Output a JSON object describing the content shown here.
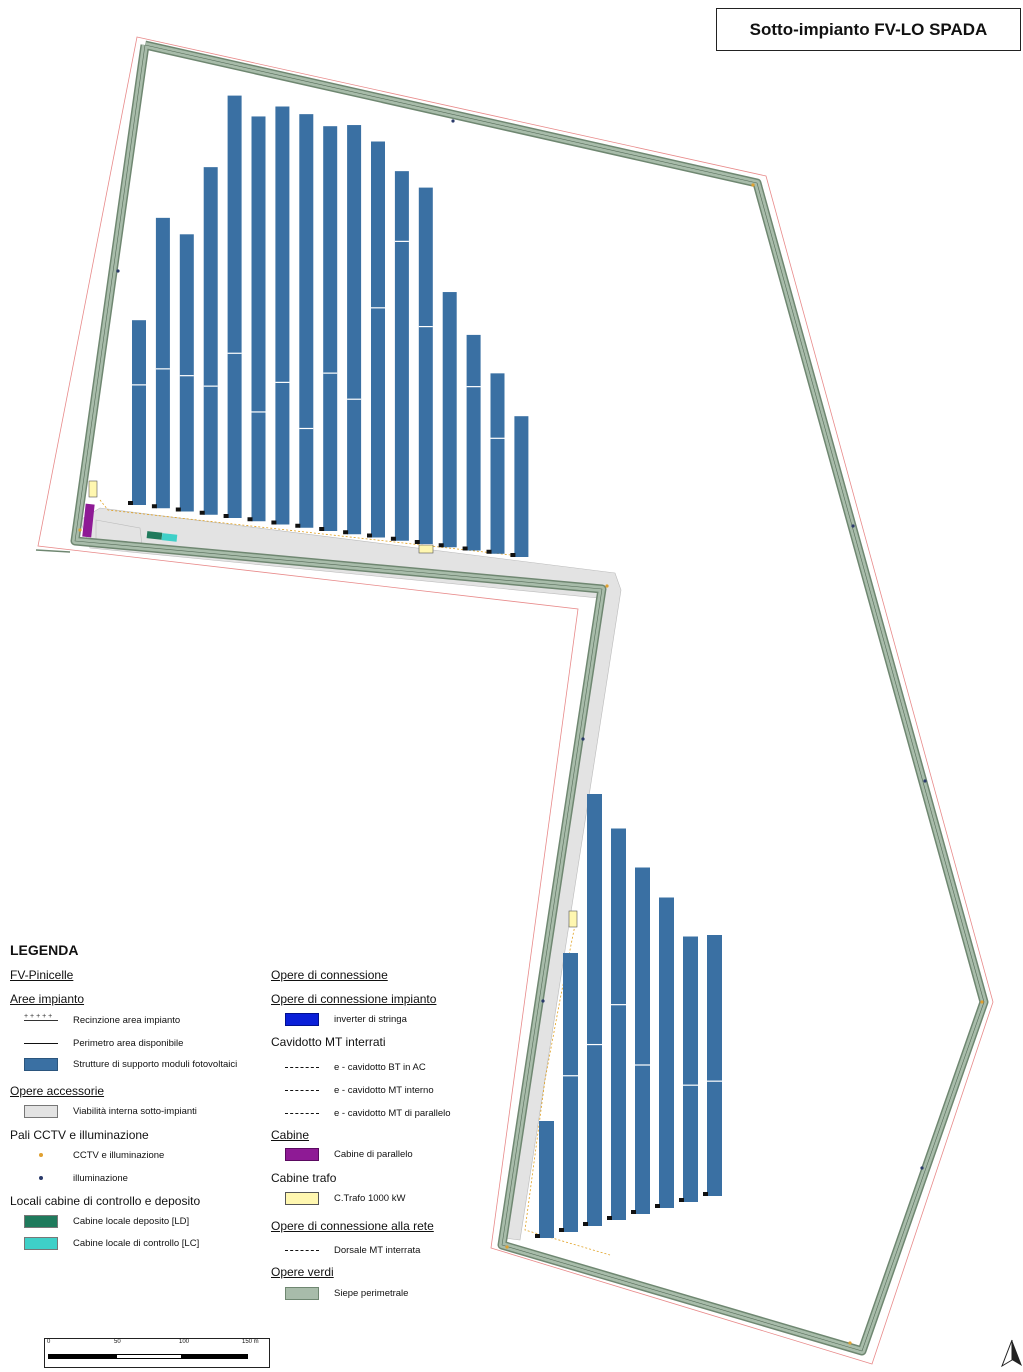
{
  "title": "Sotto-impianto FV-LO SPADA",
  "colors": {
    "pv_structure": "#3a70a3",
    "hedge": "#a8bcaa",
    "hedge_edge": "#6f8771",
    "boundary": "#e88a8a",
    "road": "#e3e3e3",
    "cabine_parallelo": "#8e1a95",
    "cabine_trafo": "#fff7b0",
    "deposito": "#1f7a5c",
    "controllo": "#3fd0c8",
    "inverter": "#0a1fd8",
    "cable_bt": "#e0a020",
    "cable_mt_interno": "#38c0d8",
    "cable_mt_parallelo": "#7a9a20",
    "dorsale": "#b040c8",
    "cctv": "#e0a030",
    "illuminazione": "#2a3a6a"
  },
  "legend": {
    "heading": "LEGENDA",
    "col1": {
      "fv_pinicelle": "FV-Pinicelle",
      "aree_impianto": "Aree impianto",
      "recinzione": "Recinzione area impianto",
      "perimetro": "Perimetro area disponibile",
      "strutture": "Strutture di supporto moduli fotovoltaici",
      "opere_accessorie": "Opere accessorie",
      "viabilita": "Viabilità interna sotto-impianti",
      "pali": "Pali CCTV e illuminazione",
      "cctv": "CCTV e illuminazione",
      "illuminazione": "illuminazione",
      "locali": "Locali cabine di controllo e deposito",
      "deposito": "Cabine locale deposito [LD]",
      "controllo": "Cabine locale di controllo [LC]"
    },
    "col2": {
      "opere_connessione": "Opere di connessione",
      "opere_connessione_impianto": "Opere di connessione impianto",
      "inverter": "inverter di stringa",
      "cavidotto": "Cavidotto MT interrati",
      "bt_ac": "e - cavidotto BT in AC",
      "mt_interno": "e - cavidotto MT interno",
      "mt_parallelo": "e - cavidotto MT di parallelo",
      "cabine": "Cabine",
      "cabine_parallelo": "Cabine di parallelo",
      "cabine_trafo": "Cabine trafo",
      "trafo": "C.Trafo 1000 kW",
      "opere_rete": "Opere di connessione alla rete",
      "dorsale": "Dorsale MT interrata",
      "opere_verdi": "Opere verdi",
      "siepe": "Siepe perimetrale"
    }
  },
  "scale": {
    "labels": [
      "0",
      "50",
      "100",
      "150 m"
    ]
  },
  "map_data": {
    "north_rows": [
      {
        "h": 0.42,
        "split": 0.35
      },
      {
        "h": 0.66,
        "split": 0.52
      },
      {
        "h": 0.63,
        "split": 0.51
      },
      {
        "h": 0.79,
        "split": 0.63
      },
      {
        "h": 0.96,
        "split": 0.61
      },
      {
        "h": 0.92,
        "split": 0.73
      },
      {
        "h": 0.95,
        "split": 0.66
      },
      {
        "h": 0.94,
        "split": 0.76
      },
      {
        "h": 0.92,
        "split": 0.61
      },
      {
        "h": 0.93,
        "split": 0.67
      },
      {
        "h": 0.9,
        "split": 0.42
      },
      {
        "h": 0.84,
        "split": 0.19
      },
      {
        "h": 0.81,
        "split": 0.39
      },
      {
        "h": 0.58,
        "split": 0
      },
      {
        "h": 0.49,
        "split": 0.24
      },
      {
        "h": 0.41,
        "split": 0.36
      },
      {
        "h": 0.32,
        "split": 0
      }
    ],
    "south_rows": [
      {
        "h": 0.26,
        "split": 0
      },
      {
        "h": 0.62,
        "split": 0.44
      },
      {
        "h": 0.96,
        "split": 0.58
      },
      {
        "h": 0.87,
        "split": 0.45
      },
      {
        "h": 0.77,
        "split": 0.57
      },
      {
        "h": 0.69,
        "split": 0
      },
      {
        "h": 0.59,
        "split": 0.56
      },
      {
        "h": 0.58,
        "split": 0.56
      }
    ]
  }
}
